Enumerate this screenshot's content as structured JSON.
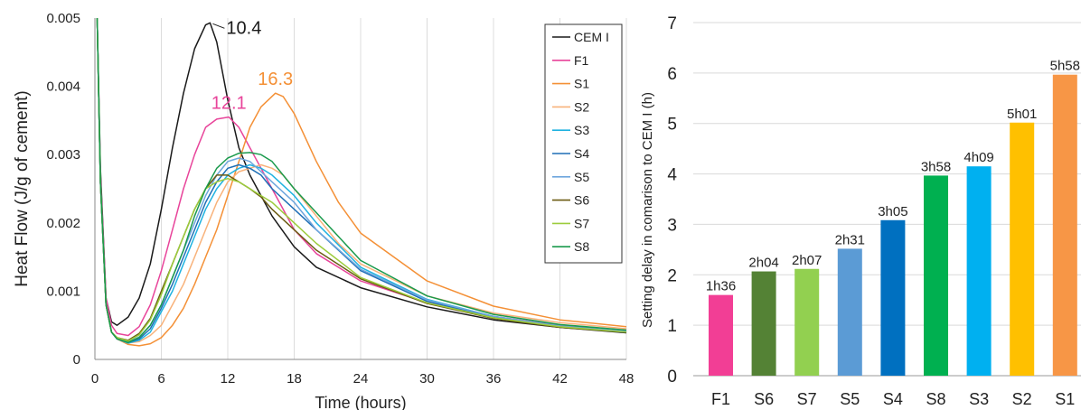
{
  "chart_data": [
    {
      "type": "line",
      "title": "",
      "xlabel": "Time (hours)",
      "ylabel": "Heat Flow (J/g of cement)",
      "xlim": [
        0,
        48
      ],
      "ylim": [
        0,
        0.005
      ],
      "xticks": [
        0,
        6,
        12,
        18,
        24,
        30,
        36,
        42,
        48
      ],
      "yticks": [
        0,
        0.001,
        0.002,
        0.003,
        0.004,
        0.005
      ],
      "ytick_labels": [
        "0",
        "0.001",
        "0.002",
        "0.003",
        "0.004",
        "0.005"
      ],
      "grid": "vertical",
      "legend": "top-right",
      "series": [
        {
          "name": "CEM I",
          "color": "#1a1a1a",
          "x": [
            0.2,
            0.5,
            1,
            1.5,
            2,
            3,
            4,
            5,
            6,
            7,
            8,
            9,
            10,
            10.4,
            11,
            12,
            13,
            14,
            15,
            16,
            18,
            20,
            24,
            30,
            36,
            42,
            48
          ],
          "y": [
            0.005,
            0.0028,
            0.0009,
            0.00055,
            0.0005,
            0.00062,
            0.0009,
            0.0014,
            0.0022,
            0.0031,
            0.0039,
            0.00455,
            0.0049,
            0.00493,
            0.00465,
            0.0038,
            0.0031,
            0.0027,
            0.0024,
            0.0021,
            0.00165,
            0.00135,
            0.00105,
            0.00077,
            0.00058,
            0.00047,
            0.00039
          ]
        },
        {
          "name": "F1",
          "color": "#e8449a",
          "x": [
            0.2,
            0.5,
            1,
            1.5,
            2,
            3,
            4,
            5,
            6,
            7,
            8,
            9,
            10,
            11,
            12.1,
            13,
            14,
            15,
            16,
            18,
            20,
            24,
            30,
            36,
            42,
            48
          ],
          "y": [
            0.005,
            0.0027,
            0.0009,
            0.0005,
            0.00038,
            0.00035,
            0.00048,
            0.0008,
            0.0013,
            0.0019,
            0.0025,
            0.003,
            0.0034,
            0.00352,
            0.00355,
            0.0034,
            0.0031,
            0.0028,
            0.0025,
            0.0019,
            0.00155,
            0.00115,
            0.00083,
            0.00063,
            0.0005,
            0.0004
          ]
        },
        {
          "name": "S1",
          "color": "#f49036",
          "x": [
            0.2,
            0.5,
            1,
            1.5,
            2,
            3,
            4,
            5,
            6,
            7,
            8,
            9,
            10,
            11,
            12,
            13,
            14,
            15,
            16.3,
            17,
            18,
            20,
            22,
            24,
            30,
            36,
            42,
            48
          ],
          "y": [
            0.005,
            0.0026,
            0.0008,
            0.0004,
            0.0003,
            0.00022,
            0.0002,
            0.00023,
            0.00032,
            0.0005,
            0.00075,
            0.0011,
            0.0015,
            0.0019,
            0.0024,
            0.0029,
            0.0034,
            0.0037,
            0.0039,
            0.00385,
            0.0036,
            0.0029,
            0.0023,
            0.00185,
            0.00115,
            0.00078,
            0.00058,
            0.00048
          ]
        },
        {
          "name": "S2",
          "color": "#f8b27a",
          "x": [
            0.2,
            0.5,
            1,
            1.5,
            2,
            3,
            4,
            5,
            6,
            7,
            8,
            9,
            10,
            11,
            12,
            13,
            14,
            15,
            16,
            17,
            18,
            20,
            22,
            24,
            30,
            36,
            42,
            48
          ],
          "y": [
            0.005,
            0.0026,
            0.0008,
            0.0004,
            0.0003,
            0.00024,
            0.00026,
            0.00035,
            0.0005,
            0.0008,
            0.0011,
            0.0015,
            0.0019,
            0.0023,
            0.0026,
            0.00275,
            0.0028,
            0.00285,
            0.0028,
            0.0027,
            0.0025,
            0.0021,
            0.0017,
            0.0014,
            0.00093,
            0.00068,
            0.00054,
            0.00045
          ]
        },
        {
          "name": "S3",
          "color": "#1fb2e0",
          "x": [
            0.2,
            0.5,
            1,
            1.5,
            2,
            3,
            4,
            5,
            6,
            7,
            8,
            9,
            10,
            11,
            12,
            13,
            14,
            15,
            16,
            18,
            20,
            24,
            30,
            36,
            42,
            48
          ],
          "y": [
            0.005,
            0.0026,
            0.0008,
            0.0004,
            0.0003,
            0.00024,
            0.00028,
            0.0004,
            0.0007,
            0.001,
            0.0014,
            0.0018,
            0.0022,
            0.0025,
            0.0027,
            0.0028,
            0.00285,
            0.0028,
            0.0027,
            0.0024,
            0.002,
            0.00135,
            0.00088,
            0.00063,
            0.00049,
            0.00041
          ]
        },
        {
          "name": "S4",
          "color": "#1e6fb6",
          "x": [
            0.2,
            0.5,
            1,
            1.5,
            2,
            3,
            4,
            5,
            6,
            7,
            8,
            9,
            10,
            11,
            12,
            13,
            14,
            15,
            16,
            18,
            20,
            24,
            30,
            36,
            42,
            48
          ],
          "y": [
            0.005,
            0.0026,
            0.0008,
            0.0004,
            0.0003,
            0.00025,
            0.0003,
            0.00045,
            0.00075,
            0.0011,
            0.0015,
            0.0019,
            0.0023,
            0.0026,
            0.0028,
            0.00285,
            0.0028,
            0.0027,
            0.0025,
            0.0022,
            0.0019,
            0.0013,
            0.00085,
            0.00062,
            0.00048,
            0.0004
          ]
        },
        {
          "name": "S5",
          "color": "#6ea6dd",
          "x": [
            0.2,
            0.5,
            1,
            1.5,
            2,
            3,
            4,
            5,
            6,
            7,
            8,
            9,
            10,
            11,
            12,
            13,
            14,
            15,
            16,
            18,
            20,
            24,
            30,
            36,
            42,
            48
          ],
          "y": [
            0.005,
            0.0026,
            0.0008,
            0.0004,
            0.0003,
            0.00026,
            0.00033,
            0.0005,
            0.0008,
            0.0012,
            0.0016,
            0.002,
            0.0024,
            0.0027,
            0.0029,
            0.00295,
            0.0029,
            0.00275,
            0.0026,
            0.0023,
            0.0019,
            0.00132,
            0.00087,
            0.00063,
            0.00049,
            0.00041
          ]
        },
        {
          "name": "S6",
          "color": "#6b5b12",
          "x": [
            0.2,
            0.5,
            1,
            1.5,
            2,
            3,
            4,
            5,
            6,
            7,
            8,
            9,
            10,
            11,
            12,
            13,
            14,
            15,
            16,
            18,
            20,
            24,
            30,
            36,
            42,
            48
          ],
          "y": [
            0.005,
            0.0026,
            0.0008,
            0.0004,
            0.00032,
            0.00028,
            0.00038,
            0.0006,
            0.001,
            0.0014,
            0.0018,
            0.0022,
            0.0025,
            0.0027,
            0.0027,
            0.0026,
            0.0025,
            0.00238,
            0.0022,
            0.0019,
            0.0016,
            0.00118,
            0.00082,
            0.0006,
            0.00047,
            0.0004
          ]
        },
        {
          "name": "S7",
          "color": "#9ccc3c",
          "x": [
            0.2,
            0.5,
            1,
            1.5,
            2,
            3,
            4,
            5,
            6,
            7,
            8,
            9,
            10,
            11,
            12,
            13,
            14,
            15,
            16,
            18,
            20,
            24,
            30,
            36,
            42,
            48
          ],
          "y": [
            0.005,
            0.0026,
            0.0008,
            0.0004,
            0.00032,
            0.00027,
            0.00036,
            0.00058,
            0.00095,
            0.0014,
            0.0018,
            0.0022,
            0.0025,
            0.0026,
            0.00265,
            0.0026,
            0.0025,
            0.0024,
            0.0023,
            0.002,
            0.0017,
            0.0012,
            0.00083,
            0.00061,
            0.00048,
            0.0004
          ]
        },
        {
          "name": "S8",
          "color": "#1a9a4c",
          "x": [
            0.2,
            0.5,
            1,
            1.5,
            2,
            3,
            4,
            5,
            6,
            7,
            8,
            9,
            10,
            11,
            12,
            13,
            14,
            15,
            16,
            18,
            20,
            24,
            30,
            36,
            42,
            48
          ],
          "y": [
            0.005,
            0.0026,
            0.0008,
            0.0004,
            0.0003,
            0.00025,
            0.00032,
            0.0005,
            0.0008,
            0.0012,
            0.0016,
            0.0021,
            0.0025,
            0.0028,
            0.00295,
            0.00302,
            0.00303,
            0.003,
            0.0029,
            0.0025,
            0.00215,
            0.00145,
            0.00093,
            0.00066,
            0.00051,
            0.00043
          ]
        }
      ],
      "annotations": [
        {
          "text": "10.4",
          "x": 10.4,
          "y": 0.00493,
          "color": "#1a1a1a"
        },
        {
          "text": "12.1",
          "x": 12.1,
          "y": 0.00355,
          "color": "#e8449a"
        },
        {
          "text": "16.3",
          "x": 16.3,
          "y": 0.0039,
          "color": "#f49036"
        }
      ]
    },
    {
      "type": "bar",
      "title": "",
      "xlabel": "",
      "ylabel": "Setting delay in comarison to CEM I (h)",
      "ylim": [
        0,
        7
      ],
      "yticks": [
        0,
        1,
        2,
        3,
        4,
        5,
        6,
        7
      ],
      "grid": "horizontal",
      "categories": [
        "F1",
        "S6",
        "S7",
        "S5",
        "S4",
        "S8",
        "S3",
        "S2",
        "S1"
      ],
      "values": [
        1.6,
        2.067,
        2.117,
        2.517,
        3.083,
        3.967,
        4.15,
        5.017,
        5.967
      ],
      "data_labels": [
        "1h36",
        "2h04",
        "2h07",
        "2h31",
        "3h05",
        "3h58",
        "4h09",
        "5h01",
        "5h58"
      ],
      "colors": [
        "#f23e95",
        "#548235",
        "#92d050",
        "#5b9bd5",
        "#0070c0",
        "#00b050",
        "#00b0f0",
        "#ffc000",
        "#f79646"
      ]
    }
  ]
}
